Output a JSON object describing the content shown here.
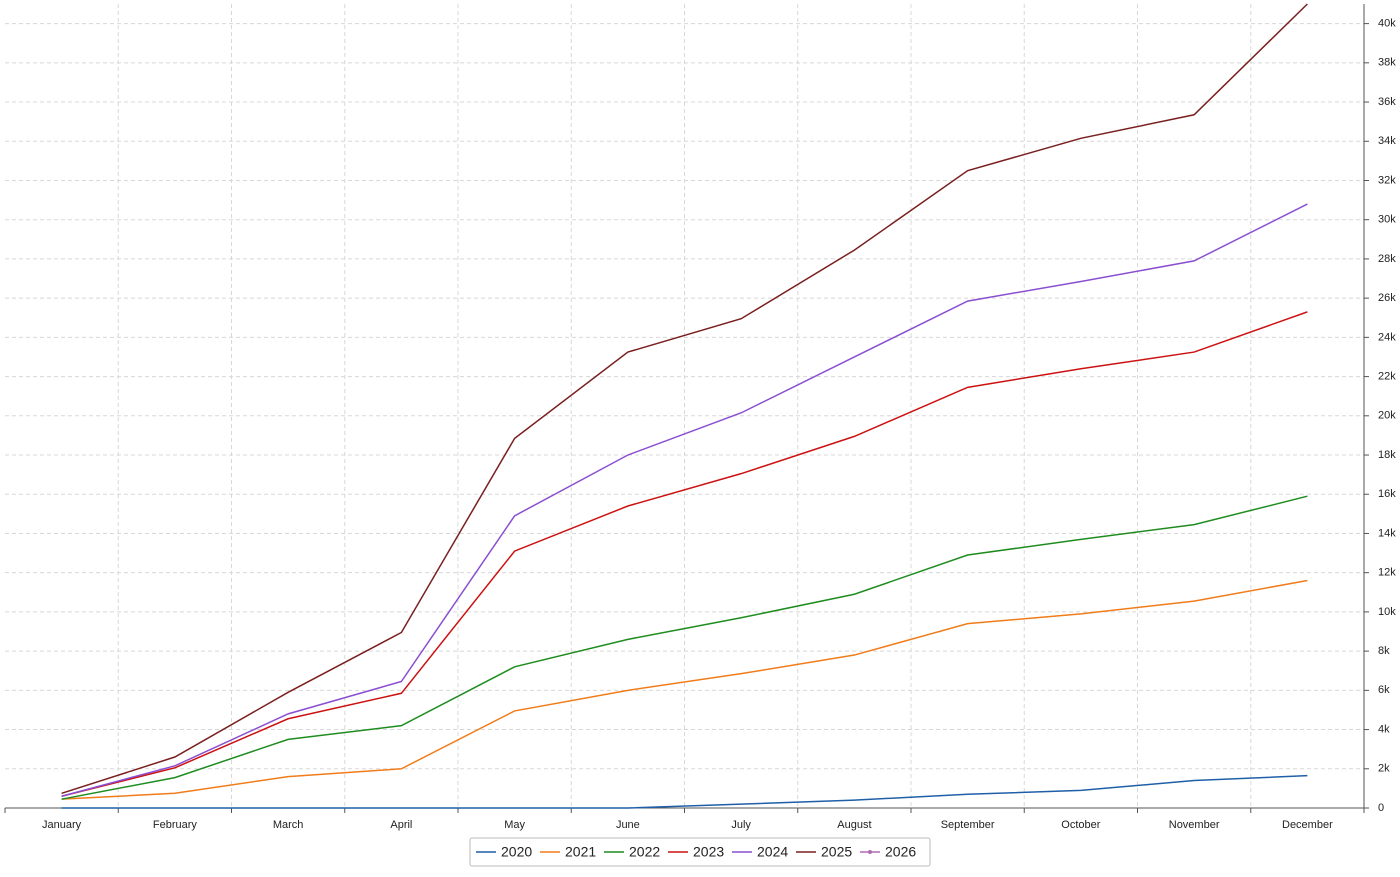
{
  "chart_data": {
    "type": "line",
    "categories": [
      "January",
      "February",
      "March",
      "April",
      "May",
      "June",
      "July",
      "August",
      "September",
      "October",
      "November",
      "December"
    ],
    "series": [
      {
        "name": "2020",
        "color": "#1f5fa8",
        "values": [
          0,
          0,
          0,
          0,
          0,
          0,
          200,
          400,
          700,
          900,
          1400,
          1650
        ]
      },
      {
        "name": "2021",
        "color": "#f07c1a",
        "values": [
          450,
          750,
          1600,
          2000,
          4950,
          6000,
          6850,
          7800,
          9400,
          9900,
          10550,
          11600
        ]
      },
      {
        "name": "2022",
        "color": "#1f8c1f",
        "values": [
          450,
          1550,
          3500,
          4200,
          7200,
          8600,
          9700,
          10900,
          12900,
          13700,
          14450,
          15900
        ]
      },
      {
        "name": "2023",
        "color": "#cc1111",
        "values": [
          600,
          2050,
          4550,
          5850,
          13100,
          15400,
          17050,
          18950,
          21450,
          22400,
          23250,
          25300
        ]
      },
      {
        "name": "2024",
        "color": "#8a4fd1",
        "values": [
          600,
          2150,
          4800,
          6450,
          14900,
          18000,
          20150,
          23000,
          25850,
          26850,
          27900,
          30800
        ]
      },
      {
        "name": "2025",
        "color": "#7a1f1f",
        "values": [
          750,
          2600,
          5900,
          8950,
          18850,
          23250,
          24950,
          28450,
          32500,
          34150,
          35350,
          41000
        ]
      },
      {
        "name": "2026",
        "color": "#b06ab3",
        "values": [
          null,
          null,
          null,
          null,
          null,
          null,
          null,
          null,
          null,
          null,
          null,
          null
        ]
      }
    ],
    "ylim": [
      0,
      41000
    ],
    "yticks": [
      0,
      {
        "value": 2000,
        "label": "2k"
      },
      {
        "value": 4000,
        "label": "4k"
      },
      {
        "value": 6000,
        "label": "6k"
      },
      {
        "value": 8000,
        "label": "8k"
      },
      {
        "value": 10000,
        "label": "10k"
      },
      {
        "value": 12000,
        "label": "12k"
      },
      {
        "value": 14000,
        "label": "14k"
      },
      {
        "value": 16000,
        "label": "16k"
      },
      {
        "value": 18000,
        "label": "18k"
      },
      {
        "value": 20000,
        "label": "20k"
      },
      {
        "value": 22000,
        "label": "22k"
      },
      {
        "value": 24000,
        "label": "24k"
      },
      {
        "value": 26000,
        "label": "26k"
      },
      {
        "value": 28000,
        "label": "28k"
      },
      {
        "value": 30000,
        "label": "30k"
      },
      {
        "value": 32000,
        "label": "32k"
      },
      {
        "value": 34000,
        "label": "34k"
      },
      {
        "value": 36000,
        "label": "36k"
      },
      {
        "value": 38000,
        "label": "38k"
      },
      {
        "value": 40000,
        "label": "40k"
      }
    ],
    "grid": true,
    "legend": "bottom"
  }
}
